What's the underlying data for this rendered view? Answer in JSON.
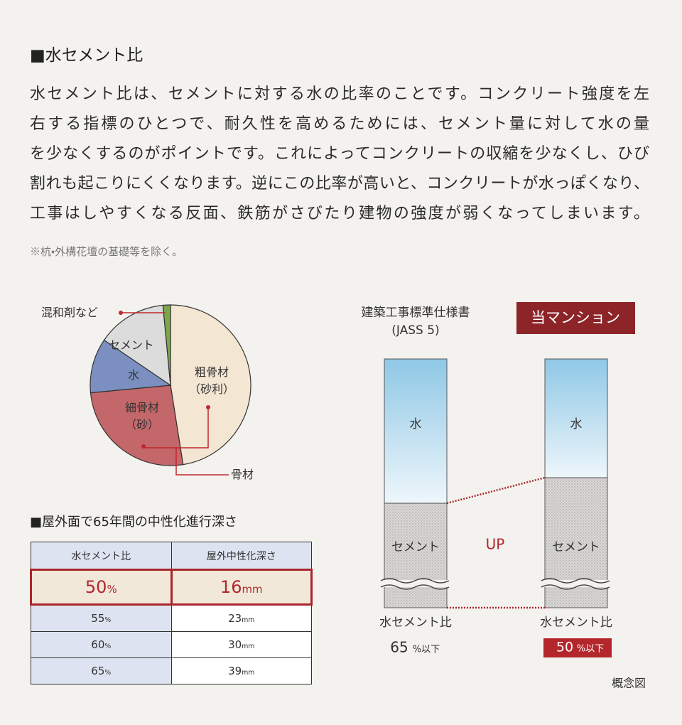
{
  "header": {
    "title": "■水セメント比"
  },
  "body": {
    "lines": [
      "水セメント比は、セメントに対する水の比率のことです。コンクリート強度を左",
      "右する指標のひとつで、耐久性を高めるためには、セメント量に対して水の量",
      "を少なくするのがポイントです。これによってコンクリートの収縮を少なくし、ひび",
      "割れも起こりにくくなります。逆にこの比率が高いと、コンクリートが水っぽくなり、",
      "工事はしやすくなる反面、鉄筋がさびたり建物の強度が弱くなってしまいます。"
    ],
    "note": "※杭・外構花壇の基礎等を除く。"
  },
  "chart_data": {
    "type": "pie",
    "categories": [
      "粗骨材\n（砂利）",
      "細骨材\n（砂）",
      "水",
      "セメント",
      "混和剤など"
    ],
    "values": [
      47.5,
      26,
      11,
      14,
      1.5
    ],
    "colors": [
      "#f3e6d2",
      "#c4676a",
      "#7b8fc0",
      "#dcdcdc",
      "#7aa84a"
    ],
    "annotation": "骨材"
  },
  "table": {
    "title": "■屋外面で65年間の中性化進行深さ",
    "headers": [
      "水セメント比",
      "屋外中性化深さ"
    ],
    "rows": [
      [
        {
          "num": "50",
          "unit": "%"
        },
        {
          "num": "16",
          "unit": "mm"
        }
      ],
      [
        {
          "num": "55",
          "unit": "%"
        },
        {
          "num": "23",
          "unit": "mm"
        }
      ],
      [
        {
          "num": "60",
          "unit": "%"
        },
        {
          "num": "30",
          "unit": "mm"
        }
      ],
      [
        {
          "num": "65",
          "unit": "%"
        },
        {
          "num": "39",
          "unit": "mm"
        }
      ]
    ]
  },
  "diagram": {
    "standard": {
      "title": "建築工事標準仕様書",
      "subtitle": "(JASS 5)"
    },
    "ours": {
      "title": "当マンション"
    },
    "water_label": "水",
    "cement_label": "セメント",
    "up": "UP",
    "ratio_label": "水セメント比",
    "standard_ratio": {
      "num": "65",
      "unit": "%以下"
    },
    "our_ratio": {
      "num": "50",
      "unit": "%以下"
    },
    "caption": "概念図"
  }
}
